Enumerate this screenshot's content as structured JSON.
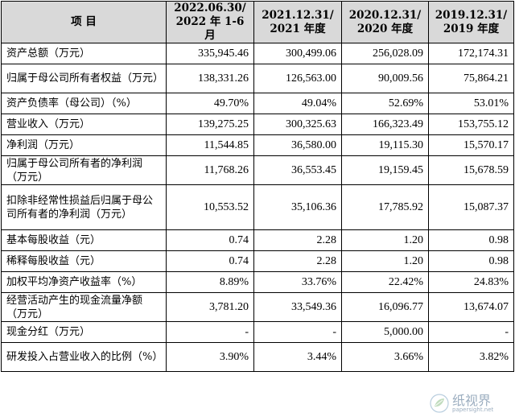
{
  "header": {
    "item": "项    目",
    "col1_line1": "2022.06.30/",
    "col1_line2": "2022 年 1-6 月",
    "col2_line1": "2021.12.31/",
    "col2_line2": "2021 年度",
    "col3_line1": "2020.12.31/",
    "col3_line2": "2020 年度",
    "col4_line1": "2019.12.31/",
    "col4_line2": "2019 年度"
  },
  "rows": [
    {
      "label": "资产总额（万元）",
      "v": [
        "335,945.46",
        "300,499.06",
        "256,028.09",
        "172,174.31"
      ]
    },
    {
      "label": "归属于母公司所有者权益（万元）",
      "v": [
        "138,331.26",
        "126,563.00",
        "90,009.56",
        "75,864.21"
      ]
    },
    {
      "label": "资产负债率（母公司）（%）",
      "v": [
        "49.70%",
        "49.04%",
        "52.69%",
        "53.01%"
      ]
    },
    {
      "label": "营业收入（万元）",
      "v": [
        "139,275.25",
        "300,325.63",
        "166,323.49",
        "153,755.12"
      ]
    },
    {
      "label": "净利润（万元）",
      "v": [
        "11,544.85",
        "36,580.00",
        "19,115.30",
        "15,570.17"
      ]
    },
    {
      "label": "归属于母公司所有者的净利润（万元）",
      "v": [
        "11,768.26",
        "36,553.45",
        "19,159.45",
        "15,678.59"
      ]
    },
    {
      "label": "扣除非经常性损益后归属于母公司所有者的净利润（万元）",
      "v": [
        "10,553.52",
        "35,106.36",
        "17,785.92",
        "15,087.37"
      ]
    },
    {
      "label": "基本每股收益（元）",
      "v": [
        "0.74",
        "2.28",
        "1.20",
        "0.98"
      ]
    },
    {
      "label": "稀释每股收益（元）",
      "v": [
        "0.74",
        "2.28",
        "1.20",
        "0.98"
      ]
    },
    {
      "label": "加权平均净资产收益率（%）",
      "v": [
        "8.89%",
        "33.76%",
        "22.42%",
        "24.83%"
      ]
    },
    {
      "label": "经营活动产生的现金流量净额（万元）",
      "v": [
        "3,781.20",
        "33,549.36",
        "16,096.77",
        "13,674.07"
      ]
    },
    {
      "label": "现金分红（万元）",
      "v": [
        "-",
        "-",
        "5,000.00",
        "-"
      ]
    },
    {
      "label": "研发投入占营业收入的比例（%）",
      "v": [
        "3.90%",
        "3.44%",
        "3.66%",
        "3.82%"
      ]
    }
  ],
  "watermark": {
    "brand": "纸视界",
    "url": "papersight.net"
  }
}
